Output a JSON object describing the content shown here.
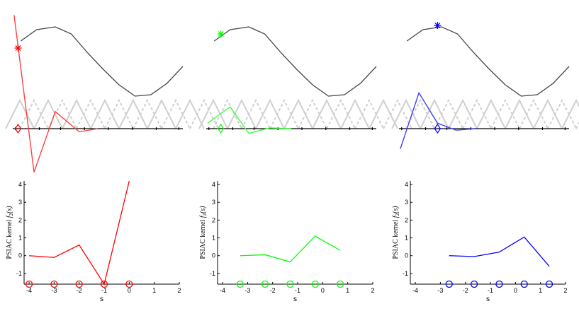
{
  "chart_data": [
    {
      "type": "line",
      "panel": "top-left",
      "description_free": true,
      "curve": {
        "x": [
          -4.5,
          -3.9,
          -3.2,
          -2.6,
          -2.0,
          -1.4,
          -0.8,
          -0.2,
          0.4,
          1.0,
          1.6
        ],
        "y": [
          0.55,
          0.95,
          1.05,
          0.8,
          0.15,
          -0.45,
          -1.0,
          -1.4,
          -1.35,
          -0.95,
          -0.35
        ]
      },
      "marker_star": {
        "x": -4.6,
        "y": 0.3,
        "color": "#ff0000"
      },
      "kernel_line": {
        "x": [
          -4.75,
          -4.0,
          -3.2,
          -2.3,
          -1.6
        ],
        "y": [
          7.3,
          -2.8,
          1.1,
          -0.2,
          0.0
        ],
        "color": "#ff4040"
      },
      "diamond_x": -4.6,
      "axis_ticks_x": [
        -4.7,
        -3.8,
        -3.0,
        -2.1,
        -1.2,
        -0.3,
        0.6,
        1.45
      ],
      "xlim": [
        -4.8,
        1.6
      ]
    },
    {
      "type": "line",
      "panel": "top-middle",
      "curve": {
        "x": [
          -4.5,
          -3.9,
          -3.2,
          -2.6,
          -2.0,
          -1.4,
          -0.8,
          -0.2,
          0.4,
          1.0,
          1.6
        ],
        "y": [
          0.55,
          0.95,
          1.05,
          0.8,
          0.15,
          -0.45,
          -1.0,
          -1.4,
          -1.35,
          -0.95,
          -0.35
        ]
      },
      "marker_star": {
        "x": -4.25,
        "y": 0.8,
        "color": "#00ff00"
      },
      "kernel_line": {
        "x": [
          -4.75,
          -3.9,
          -3.2,
          -2.4,
          -1.6
        ],
        "y": [
          0.35,
          1.4,
          -0.3,
          0.05,
          0.0
        ],
        "color": "#40ff40"
      },
      "diamond_x": -4.25,
      "axis_ticks_x": [
        -4.7,
        -3.8,
        -3.0,
        -2.1,
        -1.2,
        -0.3,
        0.6,
        1.45
      ],
      "xlim": [
        -4.8,
        1.6
      ]
    },
    {
      "type": "line",
      "panel": "top-right",
      "curve": {
        "x": [
          -4.5,
          -3.9,
          -3.2,
          -2.6,
          -2.0,
          -1.4,
          -0.8,
          -0.2,
          0.4,
          1.0,
          1.6
        ],
        "y": [
          0.55,
          0.95,
          1.05,
          0.8,
          0.15,
          -0.45,
          -1.0,
          -1.4,
          -1.35,
          -0.95,
          -0.35
        ]
      },
      "marker_star": {
        "x": -3.35,
        "y": 1.1,
        "color": "#0000ff"
      },
      "kernel_line": {
        "x": [
          -4.75,
          -4.05,
          -3.35,
          -2.65,
          -1.95
        ],
        "y": [
          -1.3,
          2.3,
          0.35,
          -0.1,
          0.0
        ],
        "color": "#4040ff"
      },
      "diamond_x": -3.35,
      "axis_ticks_x": [
        -4.7,
        -3.8,
        -3.0,
        -2.1,
        -1.2,
        -0.3,
        0.6,
        1.45
      ],
      "xlim": [
        -4.8,
        1.6
      ]
    },
    {
      "type": "line",
      "panel": "bottom-left",
      "xlabel": "s",
      "ylabel": "PSIAC kernel $f_2(s)$",
      "xlim": [
        -4.2,
        2
      ],
      "ylim": [
        -1.6,
        4.2
      ],
      "xticks": [
        -4,
        -3,
        -2,
        -1,
        0,
        1,
        2
      ],
      "yticks": [
        -1,
        0,
        1,
        2,
        3,
        4
      ],
      "series": [
        {
          "x": [
            -4,
            -3,
            -2,
            -1,
            0
          ],
          "y": [
            0.0,
            -0.1,
            0.6,
            -1.6,
            4.2
          ],
          "color": "#ff0000"
        }
      ],
      "circles_x": [
        -4,
        -3,
        -2,
        -1,
        0
      ],
      "grid": false
    },
    {
      "type": "line",
      "panel": "bottom-middle",
      "xlabel": "s",
      "ylabel": "PSIAC kernel $f_2(s)$",
      "xlim": [
        -4.2,
        2
      ],
      "ylim": [
        -1.6,
        4.2
      ],
      "xticks": [
        -4,
        -3,
        -2,
        -1,
        0,
        1,
        2
      ],
      "yticks": [
        -1,
        0,
        1,
        2,
        3,
        4
      ],
      "series": [
        {
          "x": [
            -3.3,
            -2.3,
            -1.3,
            -0.3,
            0.7
          ],
          "y": [
            0.0,
            0.05,
            -0.35,
            1.1,
            0.3
          ],
          "color": "#00ff00"
        }
      ],
      "circles_x": [
        -3.3,
        -2.3,
        -1.3,
        -0.3,
        0.7
      ],
      "grid": false
    },
    {
      "type": "line",
      "panel": "bottom-right",
      "xlabel": "s",
      "ylabel": "PSIAC kernel $f_2(s)$",
      "xlim": [
        -4.2,
        2
      ],
      "ylim": [
        -1.6,
        4.2
      ],
      "xticks": [
        -4,
        -3,
        -2,
        -1,
        0,
        1,
        2
      ],
      "yticks": [
        -1,
        0,
        1,
        2,
        3,
        4
      ],
      "series": [
        {
          "x": [
            -2.65,
            -1.65,
            -0.65,
            0.35,
            1.35
          ],
          "y": [
            0.0,
            -0.05,
            0.2,
            1.05,
            -0.6
          ],
          "color": "#0000ff"
        }
      ],
      "circles_x": [
        -2.65,
        -1.65,
        -0.65,
        0.35,
        1.35
      ],
      "grid": false
    }
  ],
  "labels": {
    "xlabel": "s",
    "ylabel_prefix": "PSIAC kernel ",
    "ylabel_func": "f",
    "ylabel_sub": "2",
    "ylabel_arg": "(s)"
  }
}
